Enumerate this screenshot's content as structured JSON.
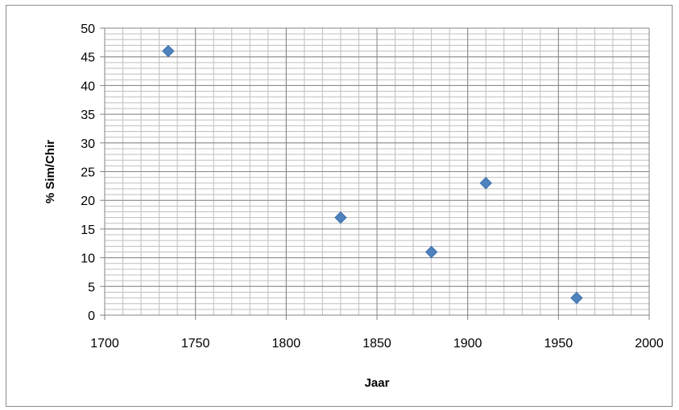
{
  "chart_data": {
    "type": "scatter",
    "title": "",
    "xlabel": "Jaar",
    "ylabel": "% Sim/Chir",
    "xlim": [
      1700,
      2000
    ],
    "ylim": [
      0,
      50
    ],
    "x_major_ticks": [
      1700,
      1750,
      1800,
      1850,
      1900,
      1950,
      2000
    ],
    "y_major_ticks": [
      0,
      5,
      10,
      15,
      20,
      25,
      30,
      35,
      40,
      45,
      50
    ],
    "x_tick_labels": [
      "1700",
      "1750",
      "1800",
      "1850",
      "1900",
      "1950",
      "2000"
    ],
    "y_tick_labels": [
      "0",
      "5",
      "10",
      "15",
      "20",
      "25",
      "30",
      "35",
      "40",
      "45",
      "50"
    ],
    "grid": true,
    "legend": "none",
    "marker": "diamond",
    "marker_color": "#4F81BD",
    "points": [
      {
        "x": 1735,
        "y": 46
      },
      {
        "x": 1830,
        "y": 17
      },
      {
        "x": 1880,
        "y": 11
      },
      {
        "x": 1910,
        "y": 23
      },
      {
        "x": 1960,
        "y": 3
      }
    ]
  }
}
